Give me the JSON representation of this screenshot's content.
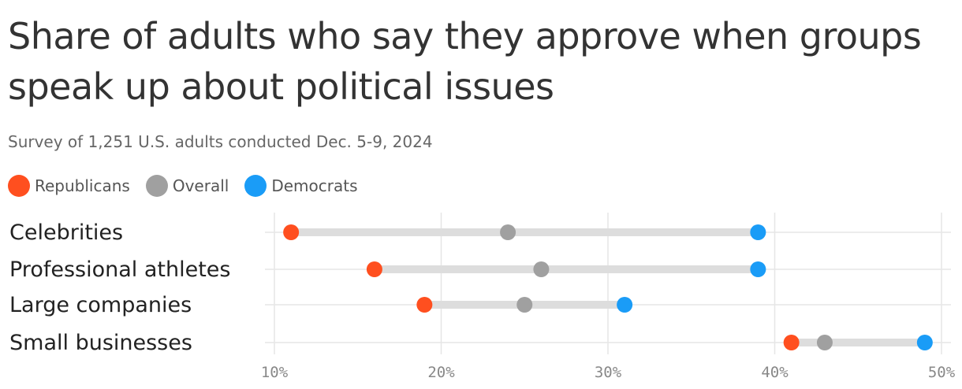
{
  "chart_data": {
    "type": "dumbbell",
    "title": "Share of adults who say they approve when groups speak up about political issues",
    "subtitle": "Survey of 1,251 U.S. adults conducted Dec. 5-9, 2024",
    "categories": [
      "Celebrities",
      "Professional athletes",
      "Large companies",
      "Small businesses"
    ],
    "series": [
      {
        "name": "Republicans",
        "color": "#ff4f1f",
        "values": [
          11,
          16,
          19,
          41
        ]
      },
      {
        "name": "Overall",
        "color": "#a0a0a0",
        "values": [
          24,
          26,
          25,
          43
        ]
      },
      {
        "name": "Democrats",
        "color": "#1a9cf7",
        "values": [
          39,
          39,
          31,
          49
        ]
      }
    ],
    "xlim": [
      10,
      50
    ],
    "xticks": [
      10,
      20,
      30,
      40,
      50
    ],
    "xtick_labels": [
      "10%",
      "20%",
      "30%",
      "40%",
      "50%"
    ],
    "legend_position": "top-left",
    "grid": true
  }
}
